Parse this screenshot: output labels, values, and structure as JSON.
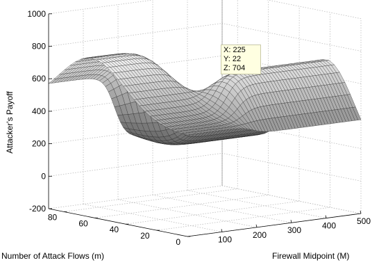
{
  "chart_data": {
    "type": "surface",
    "title": "",
    "xlabel": "Firewall Midpoint (M)",
    "ylabel": "Number of Attack Flows (m)",
    "zlabel": "Attacker's Payoff",
    "xlim": [
      0,
      500
    ],
    "ylim": [
      0,
      90
    ],
    "zlim": [
      -200,
      1000
    ],
    "x_ticks": [
      "100",
      "200",
      "300",
      "400",
      "500"
    ],
    "y_ticks": [
      "0",
      "20",
      "40",
      "60",
      "80"
    ],
    "z_ticks": [
      "-200",
      "0",
      "200",
      "400",
      "600",
      "800",
      "1000"
    ],
    "grid": true,
    "colormap": "gray",
    "surface_domain": {
      "x": [
        0,
        500
      ],
      "y": [
        0,
        90
      ]
    },
    "datatip": {
      "x": 225,
      "y": 22,
      "z": 704
    },
    "datatip_lines": [
      "X: 225",
      "Y: 22",
      "Z: 704"
    ]
  }
}
